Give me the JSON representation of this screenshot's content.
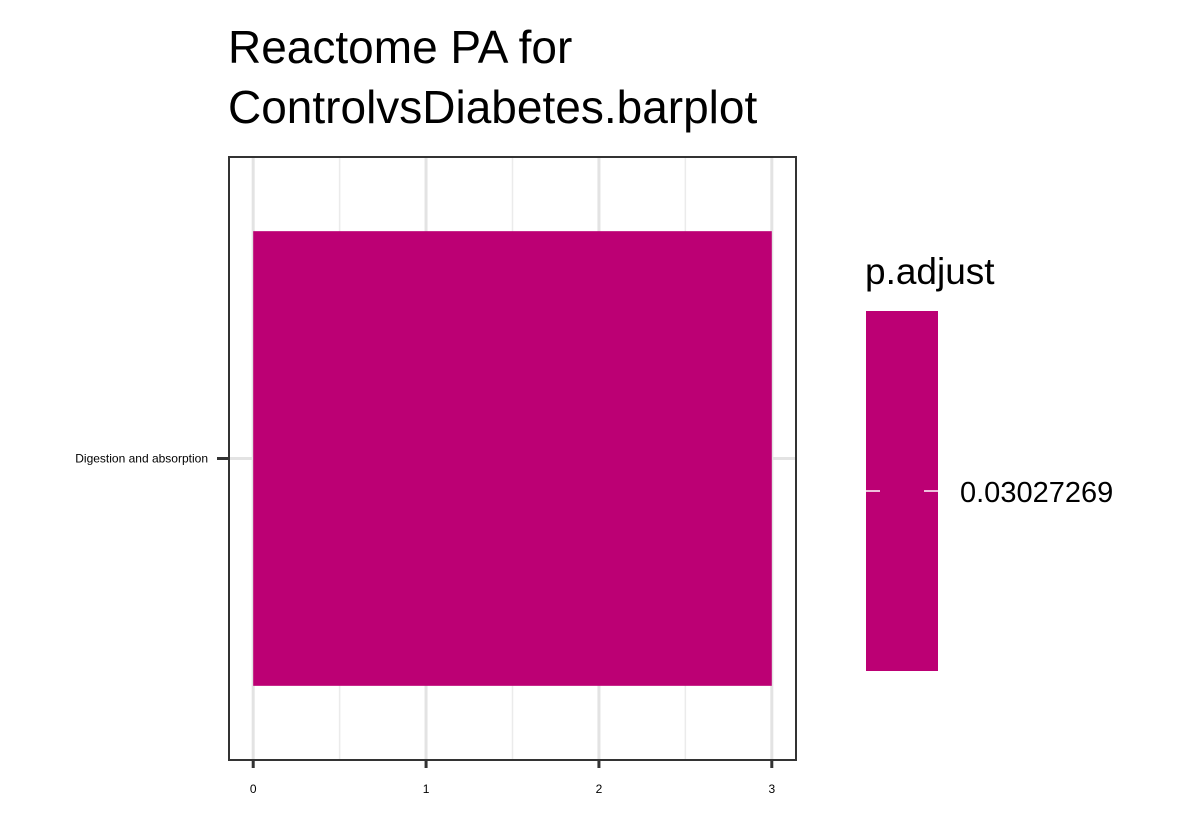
{
  "chart_data": {
    "type": "bar",
    "orientation": "horizontal",
    "title_lines": [
      "Reactome PA for",
      "ControlvsDiabetes.barplot"
    ],
    "categories": [
      "Digestion and absorption"
    ],
    "values": [
      3
    ],
    "xlim": [
      -0.14,
      3.14
    ],
    "x_ticks": [
      0,
      1,
      2,
      3
    ],
    "x_tick_labels": [
      "0",
      "1",
      "2",
      "3"
    ],
    "grid": true,
    "legend": {
      "title": "p.adjust",
      "placement": "right",
      "labels": [
        "0.03027269"
      ],
      "color": "#BC0074"
    },
    "bar_color": "#BC0074"
  }
}
